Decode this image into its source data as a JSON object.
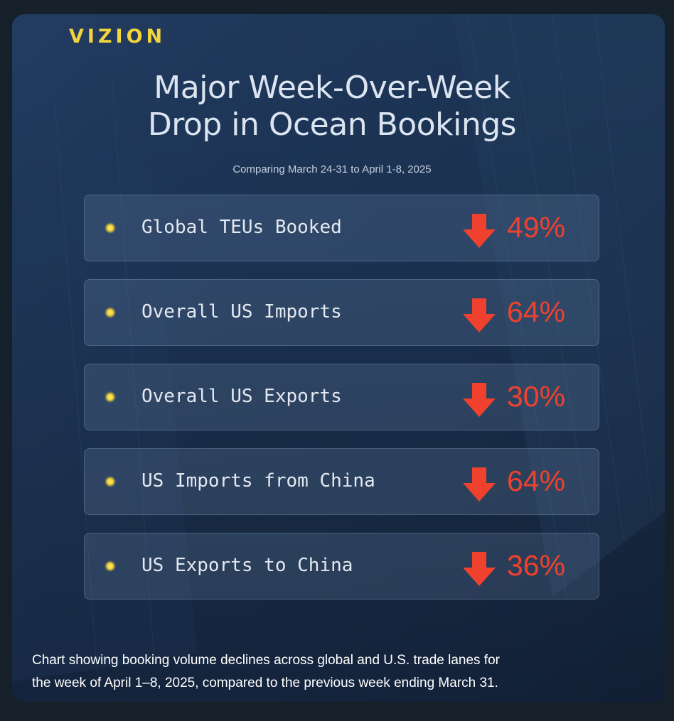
{
  "brand": "VIZION",
  "title_line1": "Major Week-Over-Week",
  "title_line2": "Drop in Ocean Bookings",
  "subtitle": "Comparing March 24-31 to April 1-8, 2025",
  "stats": [
    {
      "label": "Global TEUs Booked",
      "value": "49%",
      "icon": "down-arrow-icon"
    },
    {
      "label": "Overall US Imports",
      "value": "64%",
      "icon": "down-arrow-icon"
    },
    {
      "label": "Overall US Exports",
      "value": "30%",
      "icon": "down-arrow-icon"
    },
    {
      "label": "US Imports from China",
      "value": "64%",
      "icon": "down-arrow-icon"
    },
    {
      "label": "US Exports to China",
      "value": "36%",
      "icon": "down-arrow-icon"
    }
  ],
  "caption_line1": "Chart showing booking volume declines across global and U.S. trade lanes for",
  "caption_line2": "the week of April 1–8, 2025, compared to the previous week ending March 31.",
  "colors": {
    "brand": "#f2d43c",
    "accent_red": "#f0412e",
    "bullet": "#f3d238",
    "background": "#1a3050"
  }
}
